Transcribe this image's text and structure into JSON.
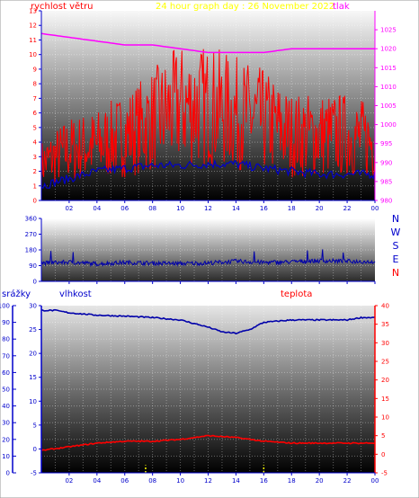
{
  "header": {
    "left_label": "rychlost větru",
    "title": "24 hour graph day : 26 November 2022",
    "right_label": "tlak"
  },
  "lower_labels": {
    "precip": "srážky",
    "humidity": "vlhkost",
    "temperature": "teplota"
  },
  "colors": {
    "background": "#000000",
    "frame": "#0000cc",
    "wind": "#ff0000",
    "wind_avg": "#0000cc",
    "pressure": "#ff00ff",
    "direction": "#0000aa",
    "humidity": "#0000aa",
    "temperature": "#ff0000",
    "precip": "#ffff00",
    "label_blue": "#0000cc",
    "label_magenta": "#ff00ff",
    "label_red": "#ff0000",
    "label_yellow": "#ffff00"
  },
  "chart_data": [
    {
      "type": "line",
      "x_ticks": [
        "02",
        "04",
        "06",
        "08",
        "10",
        "12",
        "14",
        "16",
        "18",
        "20",
        "22",
        "00"
      ],
      "y_left": {
        "label": "rychlost větru",
        "ticks": [
          "0",
          "1",
          "2",
          "3",
          "4",
          "5",
          "6",
          "7",
          "8",
          "9",
          "10",
          "11",
          "12",
          "13"
        ],
        "ylim": [
          0,
          13
        ]
      },
      "y_right": {
        "label": "tlak",
        "ticks": [
          "980",
          "985",
          "990",
          "995",
          "1000",
          "1005",
          "1010",
          "1015",
          "1020",
          "1025"
        ],
        "ylim": [
          980,
          1030
        ]
      },
      "series": [
        {
          "name": "rychlost větru",
          "axis": "left",
          "x": [
            0,
            2,
            4,
            6,
            8,
            10,
            12,
            14,
            16,
            18,
            20,
            22,
            24
          ],
          "y": [
            2.5,
            3.5,
            3.8,
            4.5,
            5.5,
            6.5,
            6.5,
            6,
            5.5,
            4.5,
            4.5,
            4.5,
            4
          ]
        },
        {
          "axis": "left",
          "x": [
            0,
            2,
            4,
            6,
            8,
            10,
            12,
            14,
            16,
            18,
            20,
            22,
            24
          ],
          "y": [
            1,
            1.5,
            2,
            2.2,
            2.4,
            2.4,
            2.5,
            2.5,
            2.2,
            2,
            1.8,
            1.8,
            1.8
          ]
        },
        {
          "name": "tlak",
          "axis": "right",
          "x": [
            0,
            2,
            4,
            6,
            8,
            10,
            12,
            14,
            16,
            18,
            20,
            22,
            24
          ],
          "y": [
            1024,
            1023,
            1022,
            1021,
            1021,
            1020,
            1019,
            1019,
            1019,
            1020,
            1020,
            1020,
            1020
          ]
        }
      ]
    },
    {
      "type": "line",
      "x_ticks": [
        "02",
        "04",
        "06",
        "08",
        "10",
        "12",
        "14",
        "16",
        "18",
        "20",
        "22",
        "00"
      ],
      "y_left": {
        "ticks": [
          "0",
          "90",
          "180",
          "270",
          "360"
        ],
        "ylim": [
          0,
          360
        ]
      },
      "y_right": {
        "ticks": [
          "N",
          "W",
          "S",
          "E",
          "N"
        ]
      },
      "series": [
        {
          "x": [
            0,
            2,
            4,
            6,
            8,
            10,
            12,
            14,
            16,
            18,
            20,
            22,
            24
          ],
          "y": [
            105,
            110,
            100,
            108,
            104,
            102,
            105,
            115,
            108,
            112,
            118,
            115,
            112
          ]
        }
      ]
    },
    {
      "type": "line",
      "x_ticks": [
        "02",
        "04",
        "06",
        "08",
        "10",
        "12",
        "14",
        "16",
        "18",
        "20",
        "22",
        "00"
      ],
      "y_precip": {
        "label": "srážky",
        "ticks": [
          "0",
          "10",
          "20",
          "30",
          "40",
          "50",
          "60",
          "70",
          "80",
          "90",
          "100"
        ],
        "ylim": [
          0,
          100
        ]
      },
      "y_humidity": {
        "label": "vlhkost",
        "ticks": [
          "-5",
          "0",
          "5",
          "10",
          "15",
          "20",
          "25",
          "30"
        ],
        "ylim": [
          -5,
          30
        ]
      },
      "y_temperature": {
        "label": "teplota",
        "ticks": [
          "-5",
          "0",
          "5",
          "10",
          "15",
          "20",
          "25",
          "30",
          "35",
          "40"
        ],
        "ylim": [
          -5,
          40
        ]
      },
      "series": [
        {
          "name": "vlhkost",
          "axis": "humidity",
          "x": [
            0,
            1,
            2,
            4,
            6,
            8,
            10,
            12,
            13,
            14,
            15,
            16,
            18,
            20,
            22,
            23,
            24
          ],
          "y": [
            29,
            29,
            28.5,
            28,
            27.8,
            27.5,
            27,
            25.5,
            24.5,
            24.2,
            25,
            26.5,
            27,
            27,
            27,
            27.5,
            27.5
          ]
        },
        {
          "name": "teplota",
          "axis": "temperature",
          "x": [
            0,
            2,
            4,
            6,
            8,
            10,
            12,
            14,
            16,
            18,
            20,
            22,
            24
          ],
          "y": [
            1,
            2,
            3,
            3.5,
            3.5,
            4,
            5,
            4.5,
            3.5,
            3,
            3,
            3,
            3
          ]
        },
        {
          "name": "srážky",
          "axis": "precip",
          "x": [
            7.5,
            16
          ],
          "y": [
            10,
            10
          ]
        }
      ]
    }
  ]
}
